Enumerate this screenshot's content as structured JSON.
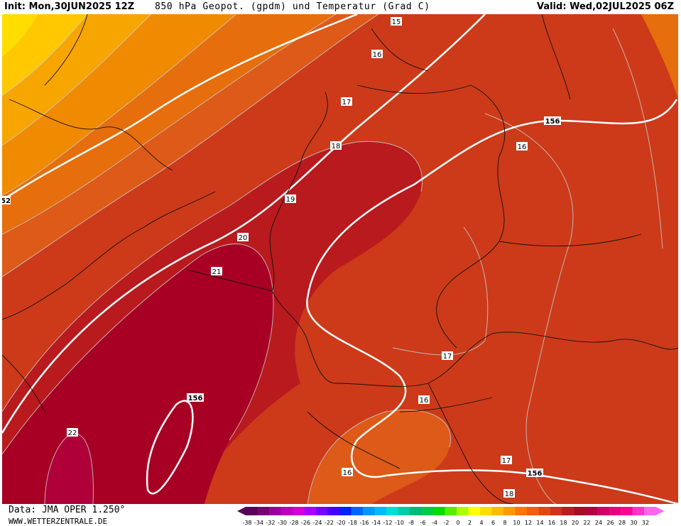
{
  "header": {
    "init": "Init: Mon,30JUN2025 12Z",
    "title": "850 hPa Geopot. (gpdm) und Temperatur (Grad C)",
    "valid": "Valid: Wed,02JUL2025 06Z"
  },
  "map": {
    "region": "Western Europe / Germany",
    "isotherm_labels": [
      "15",
      "16",
      "17",
      "18",
      "19",
      "20",
      "21",
      "16",
      "17",
      "17",
      "16",
      "16",
      "17",
      "18",
      "22"
    ],
    "geopotential_labels": [
      "156",
      "156",
      "156",
      "52"
    ],
    "colors": {
      "t22": "#b0003a",
      "t20": "#a80024",
      "t18": "#b81a1e",
      "t16": "#cc3a1a",
      "t14": "#dd5a18",
      "t12": "#e66e0c",
      "t10": "#f08a00",
      "t8": "#f7a500",
      "t6": "#ffc800",
      "t4": "#ffdd00"
    }
  },
  "footer": {
    "data_source": "Data: JMA OPER 1.250°",
    "website": "WWW.WETTERZENTRALE.DE"
  },
  "legend": {
    "ticks": [
      "-38",
      "-34",
      "-32",
      "-30",
      "-28",
      "-26",
      "-24",
      "-22",
      "-20",
      "-18",
      "-16",
      "-14",
      "-12",
      "-10",
      "-8",
      "-6",
      "-4",
      "-2",
      "0",
      "2",
      "4",
      "6",
      "8",
      "10",
      "12",
      "14",
      "16",
      "18",
      "20",
      "22",
      "24",
      "26",
      "28",
      "30",
      "32"
    ],
    "colors": [
      "#5a005a",
      "#7a007a",
      "#9a009a",
      "#bb00bb",
      "#d400d4",
      "#aa00ff",
      "#7700ff",
      "#4400ff",
      "#0022ff",
      "#0066ff",
      "#0099ff",
      "#00bbff",
      "#00dddd",
      "#00ccaa",
      "#00bb77",
      "#00cc44",
      "#00dd00",
      "#55ee00",
      "#aaff00",
      "#ffff00",
      "#ffdd00",
      "#ffbb00",
      "#ff9900",
      "#ff7700",
      "#f06010",
      "#e04a10",
      "#cc3318",
      "#b81e1e",
      "#a50f22",
      "#b00040",
      "#cc0066",
      "#e6007f",
      "#ff0099",
      "#ff33cc",
      "#ff66ee"
    ]
  }
}
